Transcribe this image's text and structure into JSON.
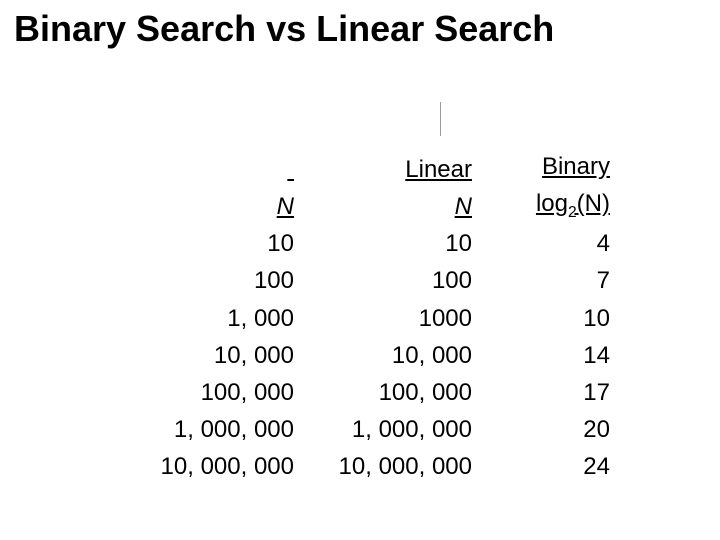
{
  "title": "Binary Search vs Linear Search",
  "table": {
    "headers": {
      "n_label": "N",
      "linear_line1": "Linear",
      "linear_line2": "N",
      "binary_line1": "Binary",
      "binary_prefix": "log",
      "binary_sub": "2",
      "binary_suffix": "(N)"
    },
    "rows": [
      {
        "n": "10",
        "linear": "10",
        "binary": "4"
      },
      {
        "n": "100",
        "linear": "100",
        "binary": "7"
      },
      {
        "n": "1, 000",
        "linear": "1000",
        "binary": "10"
      },
      {
        "n": "10, 000",
        "linear": "10, 000",
        "binary": "14"
      },
      {
        "n": "100, 000",
        "linear": "100, 000",
        "binary": "17"
      },
      {
        "n": "1, 000, 000",
        "linear": "1, 000, 000",
        "binary": "20"
      },
      {
        "n": "10, 000, 000",
        "linear": "10, 000, 000",
        "binary": "24"
      }
    ]
  },
  "colors": {
    "background": "#ffffff",
    "text": "#000000",
    "divider": "#9a9a9a"
  },
  "fonts": {
    "title_size_pt": 36,
    "body_size_pt": 24,
    "family": "Arial"
  }
}
